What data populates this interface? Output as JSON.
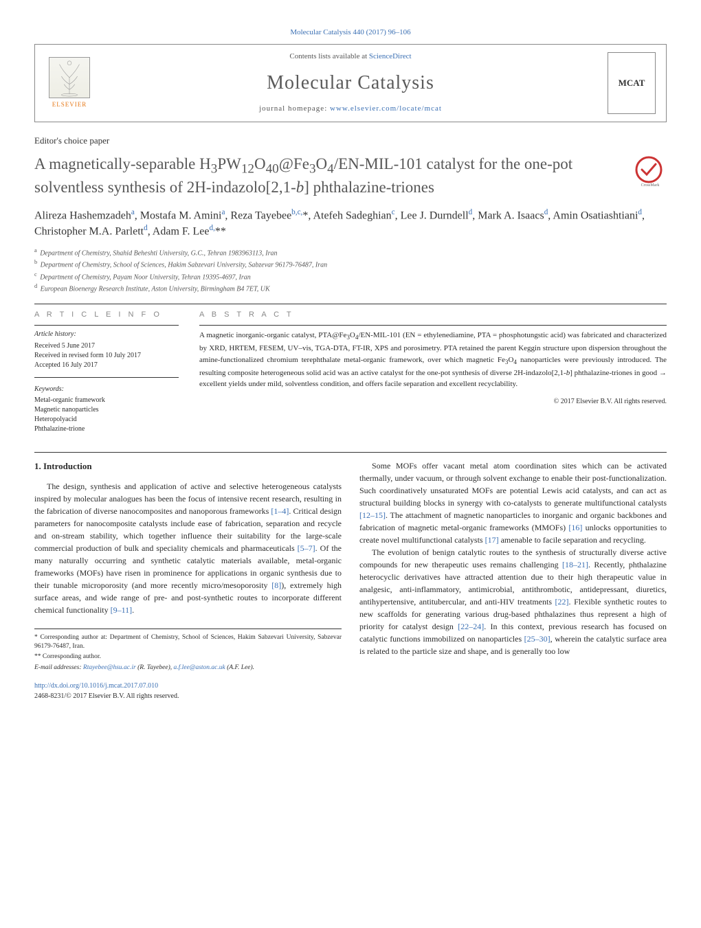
{
  "header": {
    "top_citation": "Molecular Catalysis 440 (2017) 96–106",
    "contents_prefix": "Contents lists available at ",
    "contents_link": "ScienceDirect",
    "journal_name": "Molecular Catalysis",
    "homepage_prefix": "journal homepage: ",
    "homepage_url": "www.elsevier.com/locate/mcat",
    "publisher": "ELSEVIER",
    "cover_abbr": "MCAT"
  },
  "article": {
    "type_label": "Editor's choice paper",
    "title_html": "A magnetically-separable H<sub>3</sub>PW<sub>12</sub>O<sub>40</sub>@Fe<sub>3</sub>O<sub>4</sub>/EN-MIL-101 catalyst for the one-pot solventless synthesis of 2H-indazolo[2,1-<i>b</i>] phthalazine-triones",
    "authors_html": "Alireza Hashemzadeh<sup>a</sup>, Mostafa M. Amini<sup>a</sup>, Reza Tayebee<sup>b,c,</sup>*, Atefeh Sadeghian<sup>c</sup>, Lee J. Durndell<sup>d</sup>, Mark A. Isaacs<sup>d</sup>, Amin Osatiashtiani<sup>d</sup>, Christopher M.A. Parlett<sup>d</sup>, Adam F. Lee<sup>d,</sup>**",
    "affiliations": [
      {
        "label": "a",
        "text": "Department of Chemistry, Shahid Beheshti University, G.C., Tehran 1983963113, Iran"
      },
      {
        "label": "b",
        "text": "Department of Chemistry, School of Sciences, Hakim Sabzevari University, Sabzevar 96179-76487, Iran"
      },
      {
        "label": "c",
        "text": "Department of Chemistry, Payam Noor University, Tehran 19395-4697, Iran"
      },
      {
        "label": "d",
        "text": "European Bioenergy Research Institute, Aston University, Birmingham B4 7ET, UK"
      }
    ]
  },
  "info": {
    "heading": "A R T I C L E   I N F O",
    "history_label": "Article history:",
    "received": "Received 5 June 2017",
    "revised": "Received in revised form 10 July 2017",
    "accepted": "Accepted 16 July 2017",
    "keywords_label": "Keywords:",
    "keywords": [
      "Metal-organic framework",
      "Magnetic nanoparticles",
      "Heteropolyacid",
      "Phthalazine-trione"
    ]
  },
  "abstract": {
    "heading": "A B S T R A C T",
    "text_html": "A magnetic inorganic-organic catalyst, PTA@Fe<sub>3</sub>O<sub>4</sub>/EN-MIL-101 (EN = ethylenediamine, PTA = phosphotungstic acid) was fabricated and characterized by XRD, HRTEM, FESEM, UV–vis, TGA-DTA, FT-IR, XPS and porosimetry. PTA retained the parent Keggin structure upon dispersion throughout the amine-functionalized chromium terephthalate metal-organic framework, over which magnetic Fe<sub>3</sub>O<sub>4</sub> nanoparticles were previously introduced. The resulting composite heterogeneous solid acid was an active catalyst for the one-pot synthesis of diverse 2H-indazolo[2,1-<i>b</i>] phthalazine-triones in good → excellent yields under mild, solventless condition, and offers facile separation and excellent recyclability.",
    "copyright": "© 2017 Elsevier B.V. All rights reserved."
  },
  "body": {
    "section_heading": "1. Introduction",
    "left_paragraph_html": "The design, synthesis and application of active and selective heterogeneous catalysts inspired by molecular analogues has been the focus of intensive recent research, resulting in the fabrication of diverse nanocomposites and nanoporous frameworks <span class=\"ref\">[1–4]</span>. Critical design parameters for nanocomposite catalysts include ease of fabrication, separation and recycle and on-stream stability, which together influence their suitability for the large-scale commercial production of bulk and speciality chemicals and pharmaceuticals <span class=\"ref\">[5–7]</span>. Of the many naturally occurring and synthetic catalytic materials available, metal-organic frameworks (MOFs) have risen in prominence for applications in organic synthesis due to their tunable microporosity (and more recently micro/mesoporosity <span class=\"ref\">[8]</span>), extremely high surface areas, and wide range of pre- and post-synthetic routes to incorporate different chemical functionality <span class=\"ref\">[9–11]</span>.",
    "right_p1_html": "Some MOFs offer vacant metal atom coordination sites which can be activated thermally, under vacuum, or through solvent exchange to enable their post-functionalization. Such coordinatively unsaturated MOFs are potential Lewis acid catalysts, and can act as structural building blocks in synergy with co-catalysts to generate multifunctional catalysts <span class=\"ref\">[12–15]</span>. The attachment of magnetic nanoparticles to inorganic and organic backbones and fabrication of magnetic metal-organic frameworks (MMOFs) <span class=\"ref\">[16]</span> unlocks opportunities to create novel multifunctional catalysts <span class=\"ref\">[17]</span> amenable to facile separation and recycling.",
    "right_p2_html": "The evolution of benign catalytic routes to the synthesis of structurally diverse active compounds for new therapeutic uses remains challenging <span class=\"ref\">[18–21]</span>. Recently, phthalazine heterocyclic derivatives have attracted attention due to their high therapeutic value in analgesic, anti-inflammatory, antimicrobial, antithrombotic, antidepressant, diuretics, antihypertensive, antitubercular, and anti-HIV treatments <span class=\"ref\">[22]</span>. Flexible synthetic routes to new scaffolds for generating various drug-based phthalazines thus represent a high of priority for catalyst design <span class=\"ref\">[22–24]</span>. In this context, previous research has focused on catalytic functions immobilized on nanoparticles <span class=\"ref\">[25–30]</span>, wherein the catalytic surface area is related to the particle size and shape, and is generally too low"
  },
  "footer": {
    "corr1": "* Corresponding author at: Department of Chemistry, School of Sciences, Hakim Sabzevari University, Sabzevar 96179-76487, Iran.",
    "corr2": "** Corresponding author.",
    "email_label": "E-mail addresses: ",
    "email1": "Rtayebee@hsu.ac.ir",
    "email1_name": " (R. Tayebee), ",
    "email2": "a.f.lee@aston.ac.uk",
    "email2_name": " (A.F. Lee).",
    "doi_url": "http://dx.doi.org/10.1016/j.mcat.2017.07.010",
    "issn_line": "2468-8231/© 2017 Elsevier B.V. All rights reserved."
  },
  "colors": {
    "link": "#3a6fb3",
    "text": "#2a2a2a",
    "heading_grey": "#575757",
    "orange": "#e67817"
  }
}
